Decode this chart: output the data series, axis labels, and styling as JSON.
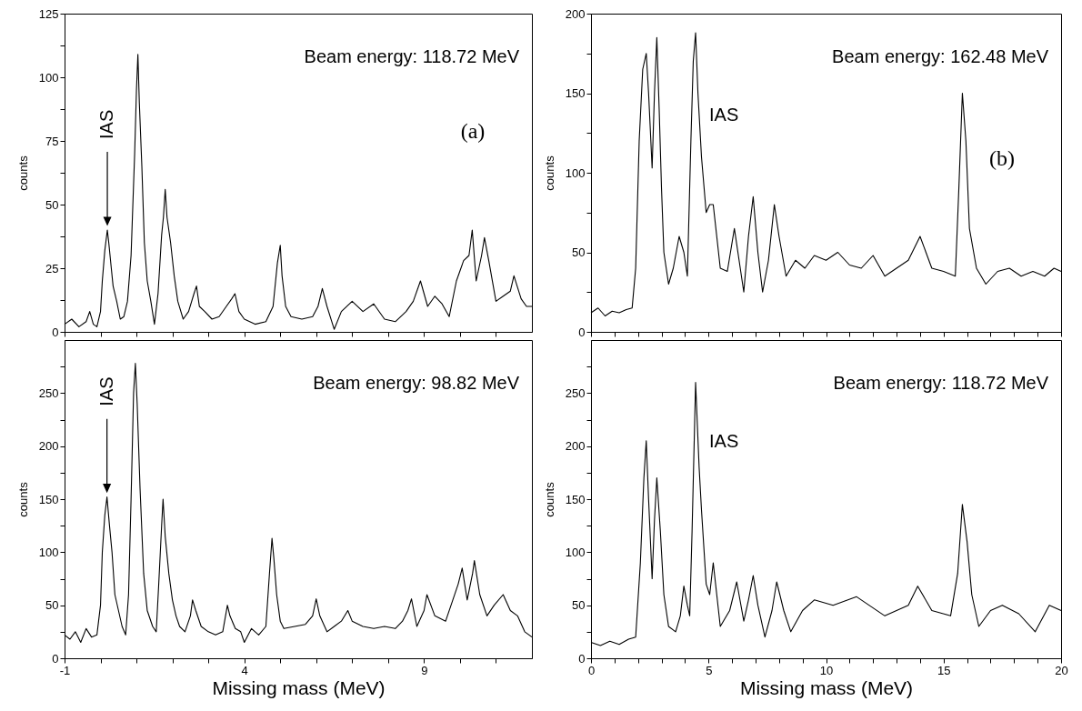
{
  "chart_data": [
    {
      "type": "line",
      "ylabel": "counts",
      "tick_labels": "y",
      "xlim": [
        -1,
        12
      ],
      "ylim": [
        0,
        125
      ],
      "xticks": [
        -1,
        {
          "value": 0,
          "label": null
        },
        {
          "value": 1,
          "label": null
        },
        {
          "value": 2,
          "label": null
        },
        {
          "value": 3,
          "label": null
        },
        4,
        {
          "value": 5,
          "label": null
        },
        {
          "value": 6,
          "label": null
        },
        {
          "value": 7,
          "label": null
        },
        {
          "value": 8,
          "label": null
        },
        9,
        {
          "value": 10,
          "label": null
        },
        {
          "value": 11,
          "label": null
        }
      ],
      "yticks": [
        0,
        {
          "value": 12.5,
          "label": null
        },
        25,
        {
          "value": 37.5,
          "label": null
        },
        50,
        {
          "value": 62.5,
          "label": null
        },
        75,
        {
          "value": 87.5,
          "label": null
        },
        100,
        {
          "value": 112.5,
          "label": null
        },
        125
      ],
      "annotations": [
        "Beam energy: 118.72 MeV",
        "(a)",
        {
          "text": "IAS",
          "x": 0.19,
          "y": 40
        }
      ],
      "x": [
        -1,
        -0.8,
        -0.6,
        -0.4,
        -0.3,
        -0.2,
        -0.1,
        0,
        0.05,
        0.12,
        0.19,
        0.23,
        0.3,
        0.35,
        0.45,
        0.55,
        0.65,
        0.75,
        0.85,
        0.95,
        1.0,
        1.04,
        1.08,
        1.15,
        1.22,
        1.3,
        1.4,
        1.5,
        1.6,
        1.7,
        1.75,
        1.8,
        1.85,
        1.95,
        2.05,
        2.15,
        2.3,
        2.45,
        2.6,
        2.67,
        2.75,
        2.9,
        3.1,
        3.3,
        3.5,
        3.65,
        3.74,
        3.85,
        4.0,
        4.3,
        4.6,
        4.8,
        4.92,
        5.0,
        5.05,
        5.15,
        5.3,
        5.6,
        5.9,
        6.05,
        6.17,
        6.3,
        6.5,
        6.7,
        7.0,
        7.3,
        7.6,
        7.9,
        8.2,
        8.5,
        8.7,
        8.9,
        9.1,
        9.3,
        9.5,
        9.7,
        9.9,
        10.1,
        10.25,
        10.34,
        10.45,
        10.6,
        10.68,
        10.8,
        11.0,
        11.2,
        11.4,
        11.5,
        11.7,
        11.85,
        12
      ],
      "series": [
        {
          "color": "#000000",
          "values": [
            3,
            5,
            2,
            4,
            8,
            3,
            2,
            8,
            20,
            32,
            40,
            35,
            25,
            18,
            12,
            5,
            6,
            12,
            30,
            70,
            95,
            109,
            90,
            65,
            35,
            20,
            12,
            3,
            15,
            38,
            45,
            56,
            45,
            35,
            22,
            12,
            5,
            8,
            15,
            18,
            10,
            8,
            5,
            6,
            10,
            13,
            15,
            8,
            5,
            3,
            4,
            10,
            27,
            34,
            22,
            10,
            6,
            5,
            6,
            10,
            17,
            10,
            1,
            8,
            12,
            8,
            11,
            5,
            4,
            8,
            12,
            20,
            10,
            14,
            11,
            6,
            20,
            28,
            30,
            40,
            20,
            30,
            37,
            28,
            12,
            14,
            16,
            22,
            13,
            10,
            10
          ]
        }
      ]
    },
    {
      "type": "line",
      "ylabel": "counts",
      "tick_labels": "y",
      "xlim": [
        0,
        20
      ],
      "ylim": [
        0,
        200
      ],
      "xticks": [
        0,
        {
          "value": 1,
          "label": null
        },
        {
          "value": 2,
          "label": null
        },
        {
          "value": 3,
          "label": null
        },
        {
          "value": 4,
          "label": null
        },
        5,
        {
          "value": 6,
          "label": null
        },
        {
          "value": 7,
          "label": null
        },
        {
          "value": 8,
          "label": null
        },
        {
          "value": 9,
          "label": null
        },
        10,
        {
          "value": 11,
          "label": null
        },
        {
          "value": 12,
          "label": null
        },
        {
          "value": 13,
          "label": null
        },
        {
          "value": 14,
          "label": null
        },
        15,
        {
          "value": 16,
          "label": null
        },
        {
          "value": 17,
          "label": null
        },
        {
          "value": 18,
          "label": null
        },
        {
          "value": 19,
          "label": null
        },
        20
      ],
      "yticks": [
        0,
        {
          "value": 25,
          "label": null
        },
        50,
        {
          "value": 75,
          "label": null
        },
        100,
        {
          "value": 125,
          "label": null
        },
        150,
        {
          "value": 175,
          "label": null
        },
        200
      ],
      "annotations": [
        "Beam energy: 162.48 MeV",
        "IAS",
        "(b)"
      ],
      "x": [
        0,
        0.3,
        0.6,
        0.9,
        1.2,
        1.5,
        1.75,
        1.9,
        2.05,
        2.2,
        2.35,
        2.45,
        2.6,
        2.7,
        2.8,
        2.9,
        3.0,
        3.1,
        3.3,
        3.5,
        3.75,
        3.95,
        4.1,
        4.25,
        4.35,
        4.45,
        4.55,
        4.7,
        4.9,
        5.05,
        5.2,
        5.35,
        5.5,
        5.8,
        6.1,
        6.3,
        6.5,
        6.7,
        6.9,
        7.1,
        7.3,
        7.55,
        7.8,
        8.0,
        8.3,
        8.7,
        9.1,
        9.5,
        10.0,
        10.5,
        11.0,
        11.5,
        12.0,
        12.5,
        13.0,
        13.5,
        14.0,
        14.5,
        15.0,
        15.5,
        15.65,
        15.8,
        15.95,
        16.1,
        16.4,
        16.8,
        17.3,
        17.8,
        18.3,
        18.8,
        19.3,
        19.7,
        20
      ],
      "series": [
        {
          "color": "#000000",
          "values": [
            12,
            15,
            10,
            13,
            12,
            14,
            15,
            40,
            120,
            165,
            175,
            150,
            103,
            150,
            185,
            140,
            90,
            50,
            30,
            40,
            60,
            50,
            35,
            120,
            170,
            188,
            150,
            110,
            75,
            80,
            80,
            60,
            40,
            38,
            65,
            45,
            25,
            60,
            85,
            50,
            25,
            45,
            80,
            60,
            35,
            45,
            40,
            48,
            45,
            50,
            42,
            40,
            48,
            35,
            40,
            45,
            60,
            40,
            38,
            35,
            90,
            150,
            120,
            65,
            40,
            30,
            38,
            40,
            35,
            38,
            35,
            40,
            38
          ]
        }
      ]
    },
    {
      "type": "line",
      "xlabel": "Missing mass (MeV)",
      "ylabel": "counts",
      "xlim": [
        -1,
        12
      ],
      "ylim": [
        0,
        300
      ],
      "xticks": [
        -1,
        {
          "value": 0,
          "label": null
        },
        {
          "value": 1,
          "label": null
        },
        {
          "value": 2,
          "label": null
        },
        {
          "value": 3,
          "label": null
        },
        4,
        {
          "value": 5,
          "label": null
        },
        {
          "value": 6,
          "label": null
        },
        {
          "value": 7,
          "label": null
        },
        {
          "value": 8,
          "label": null
        },
        9,
        {
          "value": 10,
          "label": null
        },
        {
          "value": 11,
          "label": null
        }
      ],
      "yticks": [
        0,
        {
          "value": 25,
          "label": null
        },
        50,
        {
          "value": 75,
          "label": null
        },
        100,
        {
          "value": 125,
          "label": null
        },
        150,
        {
          "value": 175,
          "label": null
        },
        200,
        {
          "value": 225,
          "label": null
        },
        250,
        {
          "value": 275,
          "label": null
        }
      ],
      "annotations": [
        "Beam energy: 98.82 MeV",
        {
          "text": "IAS",
          "x": 0.18,
          "y": 152
        }
      ],
      "x": [
        -1,
        -0.85,
        -0.7,
        -0.55,
        -0.4,
        -0.25,
        -0.1,
        0,
        0.05,
        0.12,
        0.18,
        0.25,
        0.32,
        0.4,
        0.5,
        0.6,
        0.7,
        0.78,
        0.85,
        0.92,
        0.97,
        1.02,
        1.1,
        1.2,
        1.3,
        1.45,
        1.55,
        1.62,
        1.7,
        1.74,
        1.8,
        1.9,
        2.0,
        2.1,
        2.2,
        2.35,
        2.5,
        2.56,
        2.65,
        2.8,
        3.0,
        3.2,
        3.4,
        3.53,
        3.6,
        3.75,
        3.9,
        4.0,
        4.2,
        4.4,
        4.6,
        4.7,
        4.77,
        4.82,
        4.9,
        5.0,
        5.1,
        5.4,
        5.7,
        5.9,
        6.0,
        6.1,
        6.3,
        6.5,
        6.7,
        6.88,
        7.0,
        7.3,
        7.6,
        7.9,
        8.2,
        8.4,
        8.55,
        8.65,
        8.8,
        9.0,
        9.08,
        9.3,
        9.6,
        9.8,
        9.95,
        10.06,
        10.2,
        10.35,
        10.4,
        10.55,
        10.75,
        10.95,
        11.2,
        11.4,
        11.6,
        11.8,
        12
      ],
      "series": [
        {
          "color": "#000000",
          "values": [
            22,
            18,
            25,
            15,
            28,
            20,
            22,
            50,
            100,
            135,
            152,
            125,
            100,
            60,
            45,
            30,
            22,
            60,
            150,
            250,
            278,
            240,
            160,
            80,
            45,
            30,
            25,
            70,
            125,
            150,
            115,
            80,
            55,
            40,
            30,
            25,
            40,
            55,
            45,
            30,
            25,
            22,
            25,
            50,
            40,
            28,
            25,
            15,
            28,
            22,
            30,
            80,
            113,
            95,
            60,
            35,
            28,
            30,
            32,
            40,
            56,
            40,
            25,
            30,
            35,
            45,
            35,
            30,
            28,
            30,
            28,
            35,
            45,
            56,
            30,
            45,
            60,
            40,
            35,
            55,
            70,
            85,
            55,
            80,
            92,
            60,
            40,
            50,
            60,
            45,
            40,
            25,
            20
          ]
        }
      ]
    },
    {
      "type": "line",
      "xlabel": "Missing mass (MeV)",
      "ylabel": "counts",
      "xlim": [
        0,
        20
      ],
      "ylim": [
        0,
        300
      ],
      "xticks": [
        0,
        {
          "value": 1,
          "label": null
        },
        {
          "value": 2,
          "label": null
        },
        {
          "value": 3,
          "label": null
        },
        {
          "value": 4,
          "label": null
        },
        5,
        {
          "value": 6,
          "label": null
        },
        {
          "value": 7,
          "label": null
        },
        {
          "value": 8,
          "label": null
        },
        {
          "value": 9,
          "label": null
        },
        10,
        {
          "value": 11,
          "label": null
        },
        {
          "value": 12,
          "label": null
        },
        {
          "value": 13,
          "label": null
        },
        {
          "value": 14,
          "label": null
        },
        15,
        {
          "value": 16,
          "label": null
        },
        {
          "value": 17,
          "label": null
        },
        {
          "value": 18,
          "label": null
        },
        {
          "value": 19,
          "label": null
        },
        20
      ],
      "yticks": [
        0,
        {
          "value": 25,
          "label": null
        },
        50,
        {
          "value": 75,
          "label": null
        },
        100,
        {
          "value": 125,
          "label": null
        },
        150,
        {
          "value": 175,
          "label": null
        },
        200,
        {
          "value": 225,
          "label": null
        },
        250,
        {
          "value": 275,
          "label": null
        }
      ],
      "annotations": [
        "Beam energy: 118.72 MeV",
        "IAS"
      ],
      "x": [
        0,
        0.4,
        0.8,
        1.2,
        1.6,
        1.9,
        2.1,
        2.25,
        2.35,
        2.45,
        2.6,
        2.7,
        2.8,
        2.95,
        3.1,
        3.3,
        3.6,
        3.8,
        3.95,
        4.1,
        4.2,
        4.3,
        4.45,
        4.6,
        4.7,
        4.9,
        5.05,
        5.2,
        5.35,
        5.5,
        5.9,
        6.2,
        6.5,
        6.7,
        6.9,
        7.1,
        7.4,
        7.7,
        7.9,
        8.2,
        8.5,
        9.0,
        9.5,
        10.3,
        11.3,
        12.5,
        13.5,
        13.9,
        14.5,
        15.3,
        15.6,
        15.8,
        16.0,
        16.2,
        16.5,
        17.0,
        17.5,
        18.2,
        18.9,
        19.5,
        20
      ],
      "series": [
        {
          "color": "#000000",
          "values": [
            15,
            12,
            16,
            13,
            18,
            20,
            90,
            170,
            205,
            150,
            75,
            130,
            170,
            120,
            60,
            30,
            25,
            40,
            68,
            50,
            40,
            120,
            260,
            180,
            140,
            70,
            60,
            90,
            60,
            30,
            45,
            72,
            35,
            55,
            78,
            50,
            20,
            45,
            72,
            45,
            25,
            45,
            55,
            50,
            58,
            40,
            50,
            68,
            45,
            40,
            80,
            145,
            110,
            60,
            30,
            45,
            50,
            42,
            25,
            50,
            45
          ]
        }
      ]
    }
  ]
}
